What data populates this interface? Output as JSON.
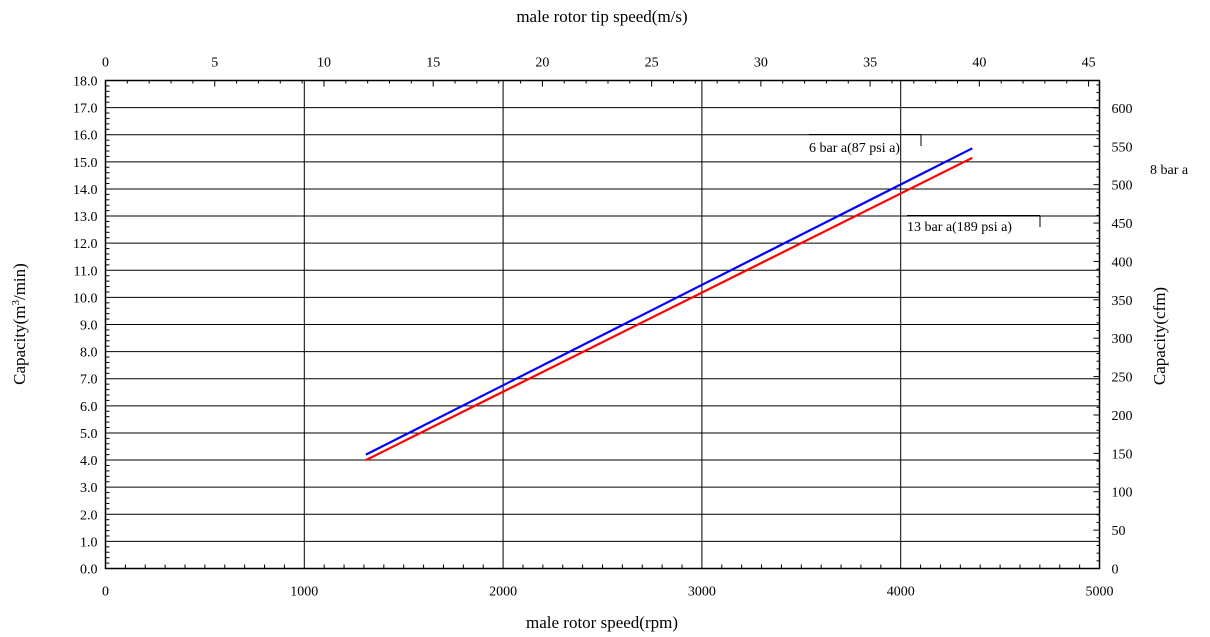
{
  "chart_data": {
    "type": "line",
    "xlabel": "male rotor speed(rpm)",
    "x2label": "male rotor tip speed(m/s)",
    "ylabel_main": "Capacity(m",
    "ylabel_sup": "3",
    "ylabel_tail": "/min)",
    "y2label": "Capacity(cfm)",
    "xlim": [
      0,
      5000
    ],
    "ylim": [
      0,
      18
    ],
    "x2lim": [
      0,
      45.5
    ],
    "y2lim": [
      0,
      635.7
    ],
    "x_ticks": [
      "0",
      "1000",
      "2000",
      "3000",
      "4000",
      "5000"
    ],
    "x2_ticks": [
      "0",
      "5",
      "10",
      "15",
      "20",
      "25",
      "30",
      "35",
      "40",
      "45"
    ],
    "y_ticks": [
      "0.0",
      "1.0",
      "2.0",
      "3.0",
      "4.0",
      "5.0",
      "6.0",
      "7.0",
      "8.0",
      "9.0",
      "10.0",
      "11.0",
      "12.0",
      "13.0",
      "14.0",
      "15.0",
      "16.0",
      "17.0",
      "18.0"
    ],
    "y2_ticks": [
      "0",
      "50",
      "100",
      "150",
      "200",
      "250",
      "300",
      "350",
      "400",
      "450",
      "500",
      "550",
      "600"
    ],
    "grid": true,
    "series": [
      {
        "color": "#0000ff",
        "x": [
          1310,
          4360
        ],
        "y": [
          4.2,
          15.5
        ]
      },
      {
        "color": "#ff0000",
        "x": [
          1310,
          4360
        ],
        "y": [
          4.0,
          15.15
        ]
      }
    ],
    "annotations": [
      {
        "text": "6 bar a(87 psi a)",
        "x": 3530,
        "y": 15.8
      },
      {
        "text": "8 bar a",
        "y2": 547
      },
      {
        "text": "13 bar a(189 psi a)",
        "x": 4020,
        "y": 12.75
      }
    ]
  }
}
